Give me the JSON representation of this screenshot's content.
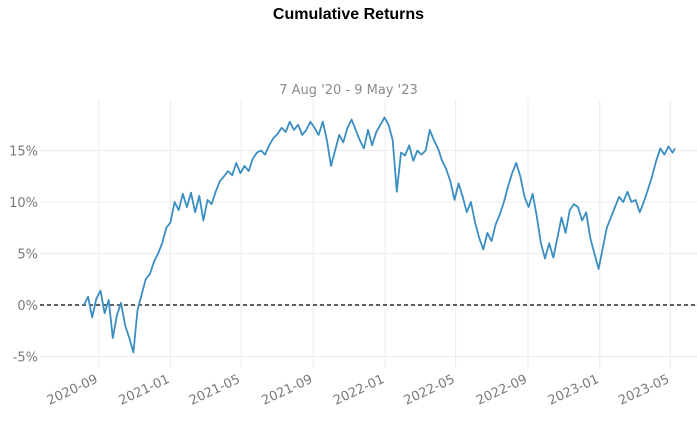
{
  "chart_data": {
    "type": "line",
    "title": "Cumulative Returns",
    "subtitle": "7 Aug '20 -  9 May '23",
    "xlabel": "",
    "ylabel": "",
    "ylim": [
      -5.5,
      19.5
    ],
    "xlim": [
      "2020-08-07",
      "2023-05-09"
    ],
    "grid": true,
    "legend": "none",
    "baseline": 0,
    "y_ticks": [
      -5,
      0,
      5,
      10,
      15
    ],
    "y_tick_labels": [
      "-5%",
      "0%",
      "5%",
      "10%",
      "15%"
    ],
    "x_ticks": [
      "2020-09-01",
      "2021-01-01",
      "2021-05-01",
      "2021-09-01",
      "2022-01-01",
      "2022-05-01",
      "2022-09-01",
      "2023-01-01",
      "2023-05-01"
    ],
    "x_tick_labels": [
      "2020-09",
      "2021-01",
      "2021-05",
      "2021-09",
      "2022-01",
      "2022-05",
      "2022-09",
      "2023-01",
      "2023-05"
    ],
    "series": [
      {
        "color": "#3b8ec2",
        "points": [
          [
            "2020-08-07",
            0.0
          ],
          [
            "2020-08-14",
            0.8
          ],
          [
            "2020-08-21",
            -1.2
          ],
          [
            "2020-08-28",
            0.6
          ],
          [
            "2020-09-04",
            1.4
          ],
          [
            "2020-09-11",
            -0.8
          ],
          [
            "2020-09-18",
            0.5
          ],
          [
            "2020-09-25",
            -3.2
          ],
          [
            "2020-10-02",
            -1.0
          ],
          [
            "2020-10-09",
            0.2
          ],
          [
            "2020-10-16",
            -2.0
          ],
          [
            "2020-10-23",
            -3.2
          ],
          [
            "2020-10-30",
            -4.6
          ],
          [
            "2020-11-06",
            -0.5
          ],
          [
            "2020-11-13",
            1.0
          ],
          [
            "2020-11-20",
            2.5
          ],
          [
            "2020-11-27",
            3.0
          ],
          [
            "2020-12-04",
            4.2
          ],
          [
            "2020-12-11",
            5.0
          ],
          [
            "2020-12-18",
            6.0
          ],
          [
            "2020-12-25",
            7.5
          ],
          [
            "2021-01-01",
            8.0
          ],
          [
            "2021-01-08",
            10.0
          ],
          [
            "2021-01-15",
            9.2
          ],
          [
            "2021-01-22",
            10.8
          ],
          [
            "2021-01-29",
            9.5
          ],
          [
            "2021-02-05",
            10.9
          ],
          [
            "2021-02-12",
            9.0
          ],
          [
            "2021-02-19",
            10.6
          ],
          [
            "2021-02-26",
            8.2
          ],
          [
            "2021-03-05",
            10.2
          ],
          [
            "2021-03-12",
            9.8
          ],
          [
            "2021-03-19",
            11.0
          ],
          [
            "2021-03-26",
            12.0
          ],
          [
            "2021-04-02",
            12.5
          ],
          [
            "2021-04-09",
            13.0
          ],
          [
            "2021-04-16",
            12.6
          ],
          [
            "2021-04-23",
            13.8
          ],
          [
            "2021-04-30",
            12.8
          ],
          [
            "2021-05-07",
            13.5
          ],
          [
            "2021-05-14",
            13.0
          ],
          [
            "2021-05-21",
            14.2
          ],
          [
            "2021-05-28",
            14.8
          ],
          [
            "2021-06-04",
            15.0
          ],
          [
            "2021-06-11",
            14.6
          ],
          [
            "2021-06-18",
            15.5
          ],
          [
            "2021-06-25",
            16.2
          ],
          [
            "2021-07-02",
            16.6
          ],
          [
            "2021-07-09",
            17.2
          ],
          [
            "2021-07-16",
            16.8
          ],
          [
            "2021-07-23",
            17.8
          ],
          [
            "2021-07-30",
            17.0
          ],
          [
            "2021-08-06",
            17.5
          ],
          [
            "2021-08-13",
            16.5
          ],
          [
            "2021-08-20",
            17.0
          ],
          [
            "2021-08-27",
            17.8
          ],
          [
            "2021-09-03",
            17.2
          ],
          [
            "2021-09-10",
            16.5
          ],
          [
            "2021-09-17",
            17.8
          ],
          [
            "2021-09-24",
            16.0
          ],
          [
            "2021-10-01",
            13.5
          ],
          [
            "2021-10-08",
            15.0
          ],
          [
            "2021-10-15",
            16.5
          ],
          [
            "2021-10-22",
            15.8
          ],
          [
            "2021-10-29",
            17.2
          ],
          [
            "2021-11-05",
            18.0
          ],
          [
            "2021-11-12",
            17.0
          ],
          [
            "2021-11-19",
            16.0
          ],
          [
            "2021-11-26",
            15.2
          ],
          [
            "2021-12-03",
            17.0
          ],
          [
            "2021-12-10",
            15.5
          ],
          [
            "2021-12-17",
            16.8
          ],
          [
            "2021-12-24",
            17.5
          ],
          [
            "2021-12-31",
            18.2
          ],
          [
            "2022-01-07",
            17.5
          ],
          [
            "2022-01-14",
            16.0
          ],
          [
            "2022-01-21",
            11.0
          ],
          [
            "2022-01-28",
            14.8
          ],
          [
            "2022-02-04",
            14.5
          ],
          [
            "2022-02-11",
            15.5
          ],
          [
            "2022-02-18",
            14.0
          ],
          [
            "2022-02-25",
            15.0
          ],
          [
            "2022-03-04",
            14.6
          ],
          [
            "2022-03-11",
            15.0
          ],
          [
            "2022-03-18",
            17.0
          ],
          [
            "2022-03-25",
            16.0
          ],
          [
            "2022-04-01",
            15.2
          ],
          [
            "2022-04-08",
            14.0
          ],
          [
            "2022-04-15",
            13.2
          ],
          [
            "2022-04-22",
            12.0
          ],
          [
            "2022-04-29",
            10.2
          ],
          [
            "2022-05-06",
            11.8
          ],
          [
            "2022-05-13",
            10.5
          ],
          [
            "2022-05-20",
            9.0
          ],
          [
            "2022-05-27",
            10.0
          ],
          [
            "2022-06-03",
            8.0
          ],
          [
            "2022-06-10",
            6.5
          ],
          [
            "2022-06-17",
            5.4
          ],
          [
            "2022-06-24",
            7.0
          ],
          [
            "2022-07-01",
            6.2
          ],
          [
            "2022-07-08",
            7.8
          ],
          [
            "2022-07-15",
            8.8
          ],
          [
            "2022-07-22",
            10.0
          ],
          [
            "2022-07-29",
            11.5
          ],
          [
            "2022-08-05",
            12.8
          ],
          [
            "2022-08-12",
            13.8
          ],
          [
            "2022-08-19",
            12.5
          ],
          [
            "2022-08-26",
            10.5
          ],
          [
            "2022-09-02",
            9.5
          ],
          [
            "2022-09-09",
            10.8
          ],
          [
            "2022-09-16",
            8.6
          ],
          [
            "2022-09-23",
            6.0
          ],
          [
            "2022-09-30",
            4.5
          ],
          [
            "2022-10-07",
            6.0
          ],
          [
            "2022-10-14",
            4.6
          ],
          [
            "2022-10-21",
            6.5
          ],
          [
            "2022-10-28",
            8.5
          ],
          [
            "2022-11-04",
            7.0
          ],
          [
            "2022-11-11",
            9.2
          ],
          [
            "2022-11-18",
            9.8
          ],
          [
            "2022-11-25",
            9.5
          ],
          [
            "2022-12-02",
            8.2
          ],
          [
            "2022-12-09",
            9.0
          ],
          [
            "2022-12-16",
            6.5
          ],
          [
            "2022-12-23",
            5.0
          ],
          [
            "2022-12-30",
            3.5
          ],
          [
            "2023-01-06",
            5.5
          ],
          [
            "2023-01-13",
            7.5
          ],
          [
            "2023-01-20",
            8.5
          ],
          [
            "2023-01-27",
            9.5
          ],
          [
            "2023-02-03",
            10.5
          ],
          [
            "2023-02-10",
            10.0
          ],
          [
            "2023-02-17",
            11.0
          ],
          [
            "2023-02-24",
            10.0
          ],
          [
            "2023-03-03",
            10.2
          ],
          [
            "2023-03-10",
            9.0
          ],
          [
            "2023-03-17",
            10.0
          ],
          [
            "2023-03-24",
            11.2
          ],
          [
            "2023-03-31",
            12.5
          ],
          [
            "2023-04-07",
            14.0
          ],
          [
            "2023-04-14",
            15.2
          ],
          [
            "2023-04-21",
            14.6
          ],
          [
            "2023-04-28",
            15.4
          ],
          [
            "2023-05-05",
            14.8
          ],
          [
            "2023-05-09",
            15.2
          ]
        ]
      }
    ]
  }
}
